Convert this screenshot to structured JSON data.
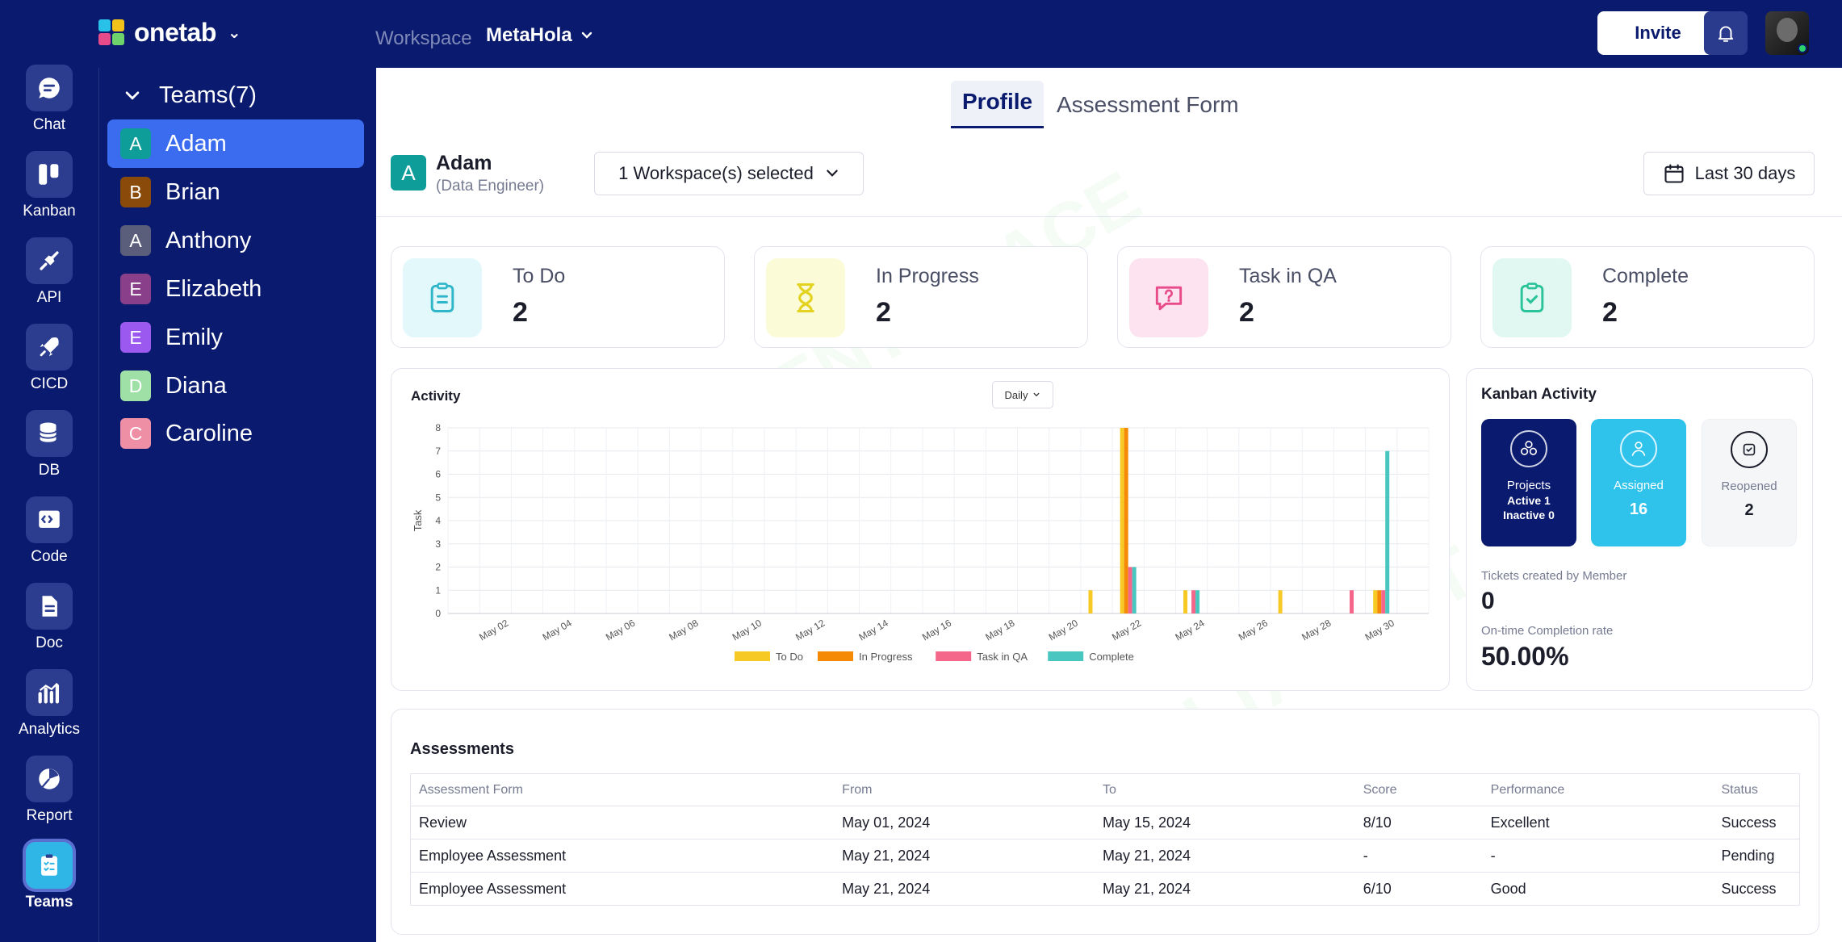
{
  "app": {
    "name": "onetab"
  },
  "topbar": {
    "workspace_label": "Workspace",
    "workspace_name": "MetaHola",
    "invite_label": "Invite"
  },
  "rail": {
    "items": [
      {
        "label": "Chat",
        "icon": "chat-icon"
      },
      {
        "label": "Kanban",
        "icon": "kanban-icon"
      },
      {
        "label": "API",
        "icon": "plug-icon"
      },
      {
        "label": "CICD",
        "icon": "rocket-icon"
      },
      {
        "label": "DB",
        "icon": "database-icon"
      },
      {
        "label": "Code",
        "icon": "code-icon"
      },
      {
        "label": "Doc",
        "icon": "document-icon"
      },
      {
        "label": "Analytics",
        "icon": "analytics-icon"
      },
      {
        "label": "Report",
        "icon": "pie-chart-icon"
      },
      {
        "label": "Teams",
        "icon": "teams-clipboard-icon"
      }
    ]
  },
  "teams": {
    "header": "Teams(7)",
    "members": [
      {
        "initial": "A",
        "name": "Adam",
        "color": "#0f9d9a"
      },
      {
        "initial": "B",
        "name": "Brian",
        "color": "#8a4b0a"
      },
      {
        "initial": "A",
        "name": "Anthony",
        "color": "#5b5e7a"
      },
      {
        "initial": "E",
        "name": "Elizabeth",
        "color": "#8a3f8a"
      },
      {
        "initial": "E",
        "name": "Emily",
        "color": "#9b59f0"
      },
      {
        "initial": "D",
        "name": "Diana",
        "color": "#9ee0a6"
      },
      {
        "initial": "C",
        "name": "Caroline",
        "color": "#ee8fa6"
      }
    ]
  },
  "tabs": {
    "profile": "Profile",
    "assessment": "Assessment Form"
  },
  "profile": {
    "initial": "A",
    "name": "Adam",
    "role": "(Data Engineer)",
    "workspace_select": "1 Workspace(s) selected",
    "date_range": "Last 30 days"
  },
  "stats": [
    {
      "label": "To Do",
      "value": "2",
      "bg": "#e3f8fa",
      "color": "#2fb6c8"
    },
    {
      "label": "In Progress",
      "value": "2",
      "bg": "#fbfbd8",
      "color": "#e3d21f"
    },
    {
      "label": "Task in QA",
      "value": "2",
      "bg": "#fde3ef",
      "color": "#e84b8a"
    },
    {
      "label": "Complete",
      "value": "2",
      "bg": "#e0f8f1",
      "color": "#2bc39a"
    }
  ],
  "activity": {
    "title": "Activity",
    "granularity": "Daily"
  },
  "chart_data": {
    "type": "bar",
    "ylabel": "Task",
    "ylim": [
      0,
      8
    ],
    "yticks": [
      "0",
      "1",
      "2",
      "3",
      "4",
      "5",
      "6",
      "7",
      "8"
    ],
    "x": [
      "May 01",
      "May 02",
      "May 03",
      "May 04",
      "May 05",
      "May 06",
      "May 07",
      "May 08",
      "May 09",
      "May 10",
      "May 11",
      "May 12",
      "May 13",
      "May 14",
      "May 15",
      "May 16",
      "May 17",
      "May 18",
      "May 19",
      "May 20",
      "May 21",
      "May 22",
      "May 23",
      "May 24",
      "May 25",
      "May 26",
      "May 27",
      "May 28",
      "May 29",
      "May 30",
      "May 31"
    ],
    "xtick_labels": [
      "May 02",
      "May 04",
      "May 06",
      "May 08",
      "May 10",
      "May 12",
      "May 14",
      "May 16",
      "May 18",
      "May 20",
      "May 22",
      "May 24",
      "May 26",
      "May 28",
      "May 30"
    ],
    "series": [
      {
        "name": "To Do",
        "color": "#f7c925",
        "values": [
          0,
          0,
          0,
          0,
          0,
          0,
          0,
          0,
          0,
          0,
          0,
          0,
          0,
          0,
          0,
          0,
          0,
          0,
          0,
          0,
          1,
          8,
          0,
          1,
          0,
          0,
          1,
          0,
          0,
          1,
          0
        ]
      },
      {
        "name": "In Progress",
        "color": "#f58a07",
        "values": [
          0,
          0,
          0,
          0,
          0,
          0,
          0,
          0,
          0,
          0,
          0,
          0,
          0,
          0,
          0,
          0,
          0,
          0,
          0,
          0,
          0,
          8,
          0,
          0,
          0,
          0,
          0,
          0,
          0,
          1,
          0
        ]
      },
      {
        "name": "Task in QA",
        "color": "#f4678a",
        "values": [
          0,
          0,
          0,
          0,
          0,
          0,
          0,
          0,
          0,
          0,
          0,
          0,
          0,
          0,
          0,
          0,
          0,
          0,
          0,
          0,
          0,
          2,
          0,
          1,
          0,
          0,
          0,
          0,
          1,
          1,
          0
        ]
      },
      {
        "name": "Complete",
        "color": "#4ac6c0",
        "values": [
          0,
          0,
          0,
          0,
          0,
          0,
          0,
          0,
          0,
          0,
          0,
          0,
          0,
          0,
          0,
          0,
          0,
          0,
          0,
          0,
          0,
          2,
          0,
          1,
          0,
          0,
          0,
          0,
          0,
          7,
          0
        ]
      }
    ]
  },
  "kanban": {
    "title": "Kanban Activity",
    "projects_label": "Projects",
    "projects_active": "Active 1",
    "projects_inactive": "Inactive 0",
    "assigned_label": "Assigned",
    "assigned_value": "16",
    "reopened_label": "Reopened",
    "reopened_value": "2",
    "tickets_label": "Tickets created by Member",
    "tickets_value": "0",
    "ontime_label": "On-time Completion rate",
    "ontime_value": "50.00%"
  },
  "assessments": {
    "title": "Assessments",
    "columns": [
      "Assessment Form",
      "From",
      "To",
      "Score",
      "Performance",
      "Status"
    ],
    "rows": [
      [
        "Review",
        "May 01, 2024",
        "May 15, 2024",
        "8/10",
        "Excellent",
        "Success"
      ],
      [
        "Employee Assessment",
        "May 21, 2024",
        "May 21, 2024",
        "-",
        "-",
        "Pending"
      ],
      [
        "Employee Assessment",
        "May 21, 2024",
        "May 21, 2024",
        "6/10",
        "Good",
        "Success"
      ]
    ]
  }
}
